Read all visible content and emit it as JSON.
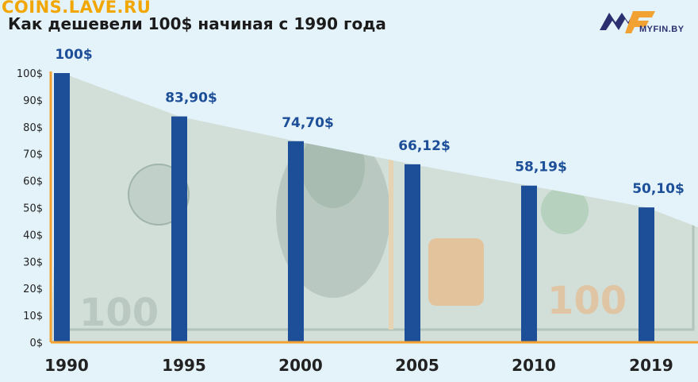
{
  "watermark": "COINS.LAVE.RU",
  "title": "Как дешевели 100$ начиная с 1990 года",
  "logo": {
    "text": "MYFIN.BY"
  },
  "colors": {
    "bar": "#1d4f99",
    "axis": "#f2a233",
    "label": "#1d4f99",
    "background": "#e4f2f9"
  },
  "chart_data": {
    "type": "bar",
    "categories": [
      "1990",
      "1995",
      "2000",
      "2005",
      "2010",
      "2019"
    ],
    "values": [
      100,
      83.9,
      74.7,
      66.12,
      58.19,
      50.1
    ],
    "data_labels": [
      "100$",
      "83,90$",
      "74,70$",
      "66,12$",
      "58,19$",
      "50,10$"
    ],
    "yticks": [
      "0$",
      "10$",
      "20$",
      "30$",
      "40$",
      "50$",
      "60$",
      "70$",
      "80$",
      "90$",
      "100$"
    ],
    "ylim": [
      0,
      100
    ],
    "title": "Как дешевели 100$ начиная с 1990 года",
    "xlabel": "",
    "ylabel": "",
    "grid": false,
    "legend": "none"
  }
}
